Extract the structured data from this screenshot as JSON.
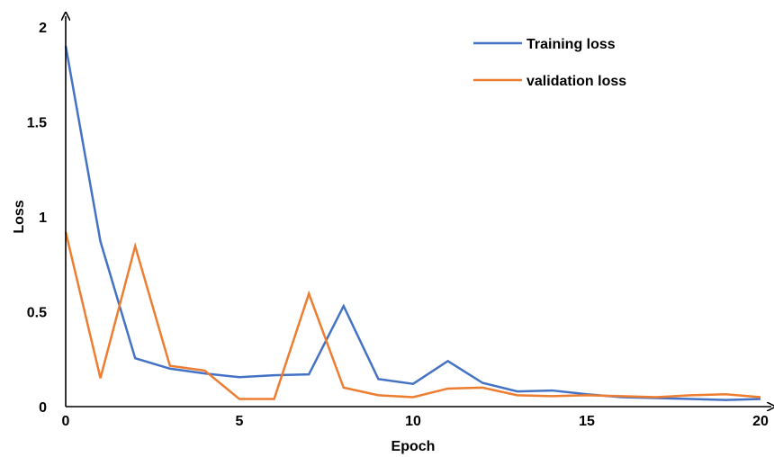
{
  "chart_data": {
    "type": "line",
    "xlabel": "Epoch",
    "ylabel": "Loss",
    "xlim": [
      0,
      20
    ],
    "ylim": [
      0,
      2
    ],
    "xticks": [
      "0",
      "5",
      "10",
      "15",
      "20"
    ],
    "yticks": [
      "0",
      "0.5",
      "1",
      "1.5",
      "2"
    ],
    "grid": false,
    "legend_position": "top-right",
    "x": [
      0,
      1,
      2,
      3,
      4,
      5,
      6,
      7,
      8,
      9,
      10,
      11,
      12,
      13,
      14,
      15,
      16,
      17,
      18,
      19,
      20
    ],
    "series": [
      {
        "name": "Training loss",
        "color": "#4472C4",
        "values": [
          1.9,
          0.87,
          0.255,
          0.2,
          0.175,
          0.155,
          0.165,
          0.17,
          0.53,
          0.145,
          0.12,
          0.24,
          0.125,
          0.08,
          0.085,
          0.065,
          0.05,
          0.045,
          0.04,
          0.035,
          0.04
        ]
      },
      {
        "name": "validation loss",
        "color": "#ED7D31",
        "values": [
          0.92,
          0.15,
          0.845,
          0.215,
          0.19,
          0.04,
          0.04,
          0.595,
          0.1,
          0.06,
          0.05,
          0.095,
          0.1,
          0.06,
          0.055,
          0.06,
          0.055,
          0.05,
          0.06,
          0.065,
          0.05
        ]
      }
    ]
  }
}
